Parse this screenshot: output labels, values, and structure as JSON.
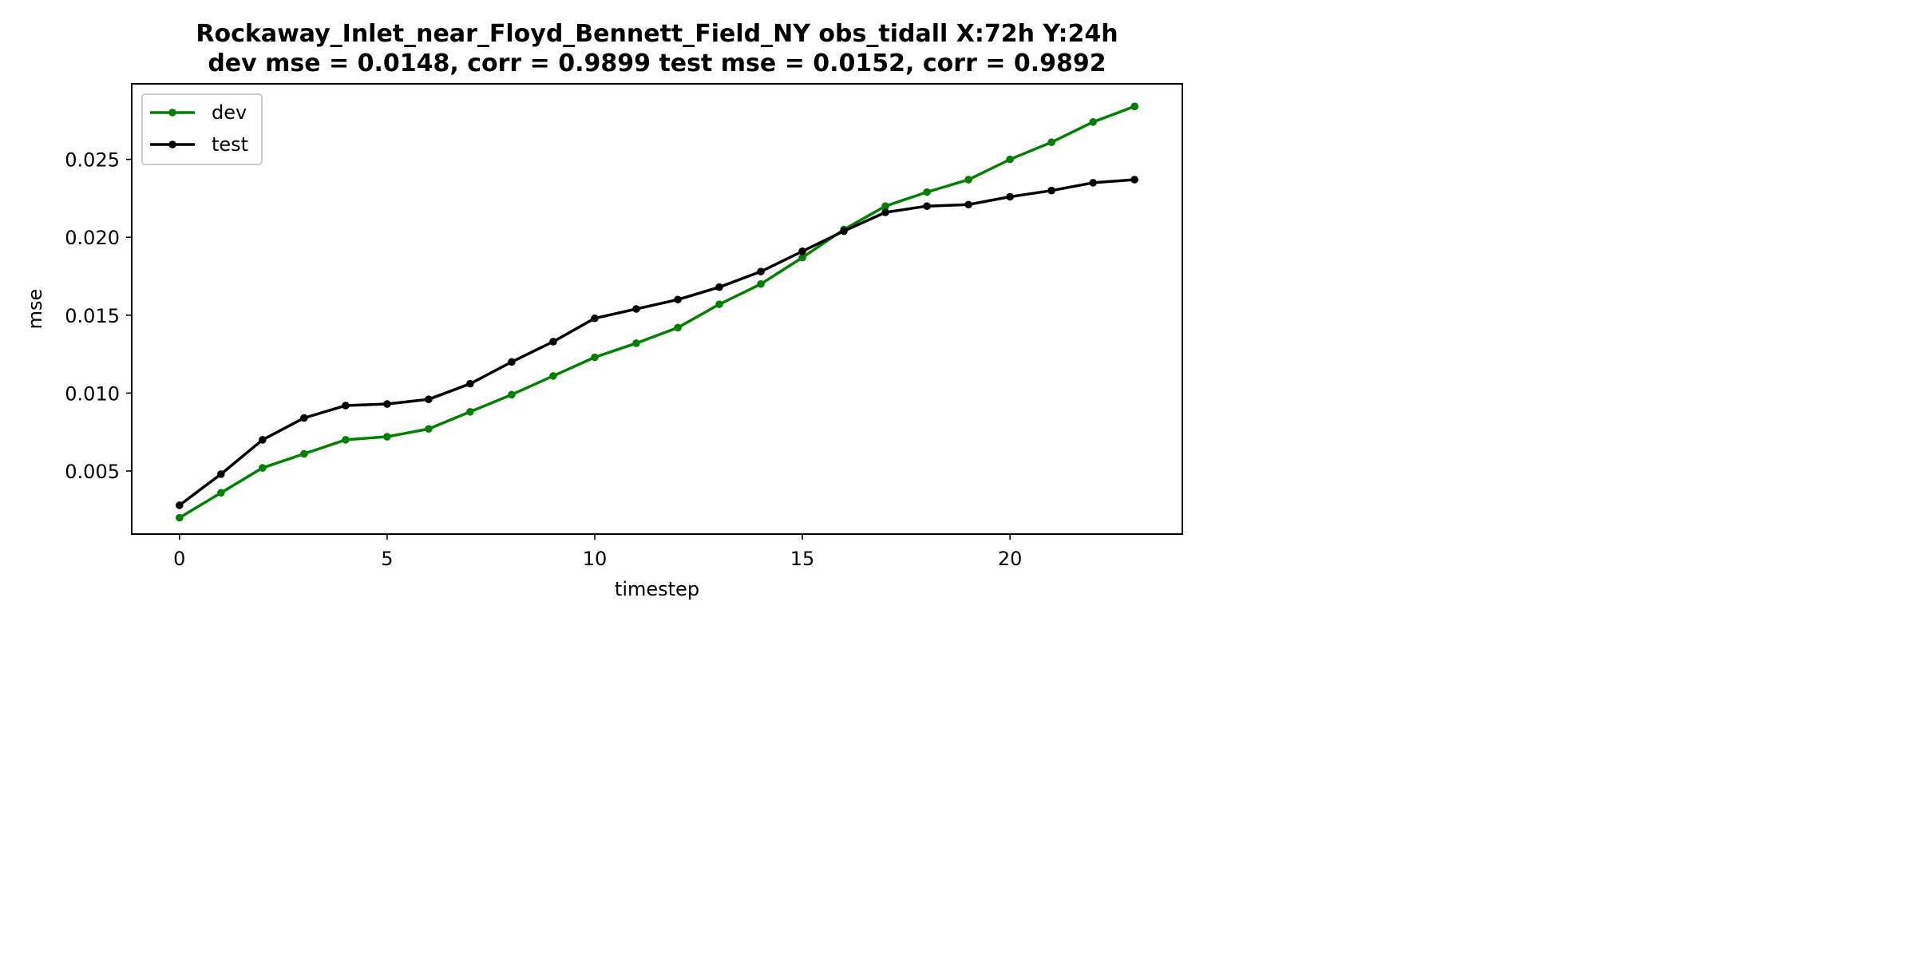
{
  "chart_data": {
    "type": "line",
    "title": "Rockaway_Inlet_near_Floyd_Bennett_Field_NY   obs_tidall   X:72h   Y:24h",
    "subtitle": "dev mse = 0.0148, corr = 0.9899   test mse = 0.0152, corr = 0.9892",
    "xlabel": "timestep",
    "ylabel": "mse",
    "xlim": [
      -1.15,
      24.15
    ],
    "ylim": [
      0.00095,
      0.02985
    ],
    "xticks": [
      0,
      5,
      10,
      15,
      20
    ],
    "yticks": [
      0.005,
      0.01,
      0.015,
      0.02,
      0.025
    ],
    "xtick_labels": [
      "0",
      "5",
      "10",
      "15",
      "20"
    ],
    "ytick_labels": [
      "0.005",
      "0.010",
      "0.015",
      "0.020",
      "0.025"
    ],
    "grid": false,
    "legend_position": "upper-left",
    "x": [
      0,
      1,
      2,
      3,
      4,
      5,
      6,
      7,
      8,
      9,
      10,
      11,
      12,
      13,
      14,
      15,
      16,
      17,
      18,
      19,
      20,
      21,
      22,
      23
    ],
    "series": [
      {
        "name": "dev",
        "color": "#008000",
        "marker": "circle",
        "values": [
          0.002,
          0.0036,
          0.0052,
          0.0061,
          0.007,
          0.0072,
          0.0077,
          0.0088,
          0.0099,
          0.0111,
          0.0123,
          0.0132,
          0.0142,
          0.0157,
          0.017,
          0.0187,
          0.0205,
          0.022,
          0.0229,
          0.0237,
          0.025,
          0.0261,
          0.0274,
          0.0284
        ]
      },
      {
        "name": "test",
        "color": "#000000",
        "marker": "circle",
        "values": [
          0.0028,
          0.0048,
          0.007,
          0.0084,
          0.0092,
          0.0093,
          0.0096,
          0.0106,
          0.012,
          0.0133,
          0.0148,
          0.0154,
          0.016,
          0.0168,
          0.0178,
          0.0191,
          0.0204,
          0.0216,
          0.022,
          0.0221,
          0.0226,
          0.023,
          0.0235,
          0.0237
        ]
      }
    ]
  }
}
